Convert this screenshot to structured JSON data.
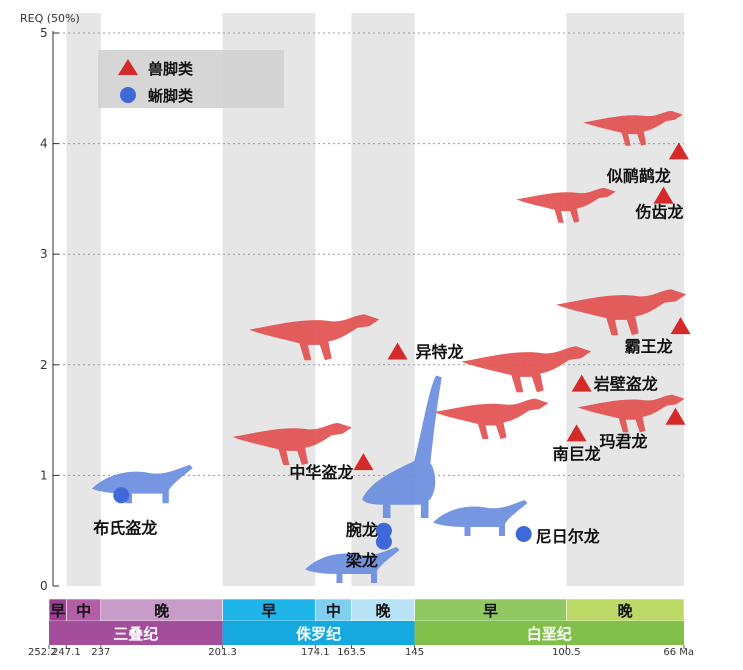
{
  "chart_data": {
    "type": "scatter",
    "ylabel": "REQ (50%)",
    "ylim": [
      0,
      5
    ],
    "yticks": [
      "0",
      "1",
      "2",
      "3",
      "4",
      "5"
    ],
    "xlabel_unit": "Ma",
    "x_direction": "decreasing",
    "xlim": [
      252.2,
      66
    ],
    "legend": {
      "placement": "top-left",
      "entries": [
        {
          "name": "兽脚类",
          "marker": "triangle",
          "color": "#d42a2a"
        },
        {
          "name": "蜥脚类",
          "marker": "circle",
          "color": "#3f68d8"
        }
      ]
    },
    "series": [
      {
        "name": "兽脚类",
        "marker": "triangle",
        "color": "#d42a2a",
        "points": [
          {
            "label": "异特龙",
            "x": 150.0,
            "y": 2.12
          },
          {
            "label": "中华盗龙",
            "x": 160.0,
            "y": 1.12
          },
          {
            "label": "岩壁盗龙",
            "x": 96.0,
            "y": 1.83
          },
          {
            "label": "南巨龙",
            "x": 97.5,
            "y": 1.38
          },
          {
            "label": "玛君龙",
            "x": 68.5,
            "y": 1.53
          },
          {
            "label": "霸王龙",
            "x": 67.0,
            "y": 2.35
          },
          {
            "label": "伤齿龙",
            "x": 72.0,
            "y": 3.53
          },
          {
            "label": "似鸸鹋龙",
            "x": 67.5,
            "y": 3.93
          }
        ]
      },
      {
        "name": "蜥脚类",
        "marker": "circle",
        "color": "#3f68d8",
        "points": [
          {
            "label": "布氏盗龙",
            "x": 231.0,
            "y": 0.82
          },
          {
            "label": "腕龙",
            "x": 154.0,
            "y": 0.5
          },
          {
            "label": "梁龙",
            "x": 154.0,
            "y": 0.4
          },
          {
            "label": "尼日尔龙",
            "x": 113.0,
            "y": 0.47
          }
        ]
      }
    ],
    "timescale": {
      "periods": [
        {
          "name": "三叠纪",
          "start": 252.2,
          "end": 201.3,
          "color": "#a34d9b",
          "epochs": [
            {
              "name": "早",
              "start": 252.2,
              "end": 247.1,
              "color": "#9d3d94"
            },
            {
              "name": "中",
              "start": 247.1,
              "end": 237,
              "color": "#b25fa8"
            },
            {
              "name": "晚",
              "start": 237,
              "end": 201.3,
              "color": "#c79cc8"
            }
          ]
        },
        {
          "name": "侏罗纪",
          "start": 201.3,
          "end": 145,
          "color": "#15a9e0",
          "epochs": [
            {
              "name": "早",
              "start": 201.3,
              "end": 174.1,
              "color": "#1fb5e8"
            },
            {
              "name": "中",
              "start": 174.1,
              "end": 163.5,
              "color": "#7fd0f0"
            },
            {
              "name": "晚",
              "start": 163.5,
              "end": 145,
              "color": "#b7e3f5"
            }
          ]
        },
        {
          "name": "白垩纪",
          "start": 145,
          "end": 66,
          "color": "#7fbf4a",
          "epochs": [
            {
              "name": "早",
              "start": 145,
              "end": 100.5,
              "color": "#90c861"
            },
            {
              "name": "晚",
              "start": 100.5,
              "end": 66,
              "color": "#bcd966"
            }
          ]
        }
      ],
      "age_ticks": [
        "252.2",
        "247.1",
        "237",
        "201.3",
        "174.1",
        "163.5",
        "145",
        "100.5",
        "66 Ma"
      ],
      "age_values": [
        252.2,
        247.1,
        237,
        201.3,
        174.1,
        163.5,
        145,
        100.5,
        66
      ]
    },
    "grid": true
  }
}
